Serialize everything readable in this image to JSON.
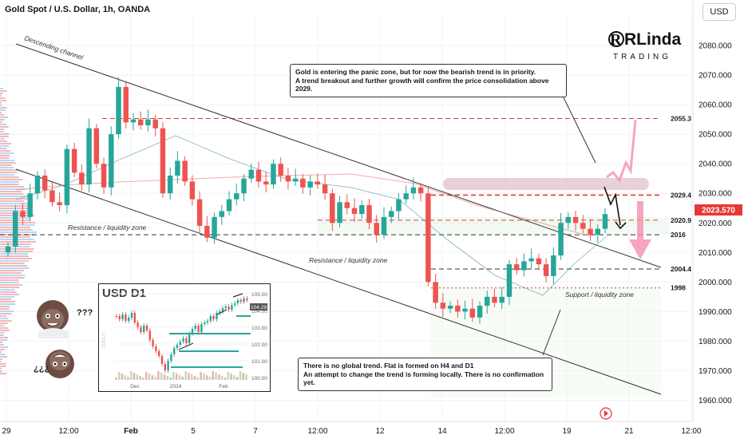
{
  "header": {
    "title": "Gold Spot / U.S. Dollar, 1h, OANDA"
  },
  "currency_button": "USD",
  "annotations": {
    "top_note_l1": "Gold is entering the panic zone, but for now the bearish trend is in priority.",
    "top_note_l2": "A trend breakout and further growth will confirm the price consolidation above 2029.",
    "bottom_note_l1": "There is no global trend. Flat is formed on H4 and D1",
    "bottom_note_l2": "An attempt to change the trend is forming locally. There is no confirmation yet.",
    "channel_label": "Descending channel",
    "resistance_left": "Resistance / liquidity zone",
    "resistance_mid": "Resistance / liquidity zone",
    "support_label": "Support / liquidity zone",
    "meme_top": "???",
    "meme_bottom": "¿¿¿"
  },
  "logo": {
    "line1": "RLinda",
    "line2": "TRADING"
  },
  "inset": {
    "title": "USD D1",
    "yticks": [
      "105.00",
      "104.00",
      "103.00",
      "102.00",
      "101.00",
      "100.00"
    ],
    "price_tag": "104.28",
    "xticks": [
      "Dec",
      "2024",
      "Feb"
    ],
    "watermark": "DAILY"
  },
  "chart_data": {
    "type": "candlestick",
    "title": "Gold Spot / U.S. Dollar, 1h, OANDA",
    "ylim": [
      1955,
      2090
    ],
    "yticks": [
      "2080.000",
      "2070.000",
      "2060.000",
      "2050.000",
      "2040.000",
      "2030.000",
      "2020.000",
      "2010.000",
      "2000.000",
      "1990.000",
      "1980.000",
      "1970.000",
      "1960.000"
    ],
    "xticks": [
      "29",
      "12:00",
      "Feb",
      "5",
      "7",
      "12:00",
      "12",
      "14",
      "12:00",
      "19",
      "21",
      "12:00"
    ],
    "current_price": "2023.570",
    "levels": [
      {
        "label": "2055.3",
        "value": 2055.3,
        "color": "#e53935",
        "style": "dashed"
      },
      {
        "label": "2029.4",
        "value": 2029.4,
        "color": "#e53935",
        "style": "dashed"
      },
      {
        "label": "2020.9",
        "value": 2020.9,
        "color": "#e53935",
        "style": "dashed"
      },
      {
        "label": "2016",
        "value": 2016.0,
        "color": "#333333",
        "style": "dashed"
      },
      {
        "label": "2004.4",
        "value": 2004.4,
        "color": "#333333",
        "style": "dashed"
      },
      {
        "label": "1998",
        "value": 1998.0,
        "color": "#e53935",
        "style": "dotted"
      }
    ],
    "close_path": [
      2012,
      2024,
      2022,
      2030,
      2036,
      2031,
      2027,
      2026,
      2045,
      2037,
      2033,
      2052,
      2040,
      2032,
      2050,
      2066,
      2054,
      2055,
      2053,
      2055,
      2052,
      2030,
      2036,
      2041,
      2034,
      2028,
      2019,
      2015,
      2022,
      2024,
      2028,
      2030,
      2035,
      2038,
      2034,
      2033,
      2040,
      2036,
      2034,
      2035,
      2032,
      2034,
      2033,
      2030,
      2020,
      2027,
      2025,
      2023,
      2026,
      2020,
      2016,
      2022,
      2024,
      2028,
      2030,
      2032,
      2030,
      2000,
      1993,
      1991,
      1992,
      1990,
      1991,
      1988,
      1992,
      1995,
      1993,
      1995,
      2006,
      2004,
      2007,
      2008,
      2006,
      2002,
      2009,
      2020,
      2022,
      2020,
      2018,
      2016,
      2018,
      2023
    ]
  },
  "colors": {
    "up": "#26a69a",
    "down": "#ef5350",
    "grid": "#f0f3fa",
    "channel": "#333333",
    "projection": "#f48fb1"
  }
}
